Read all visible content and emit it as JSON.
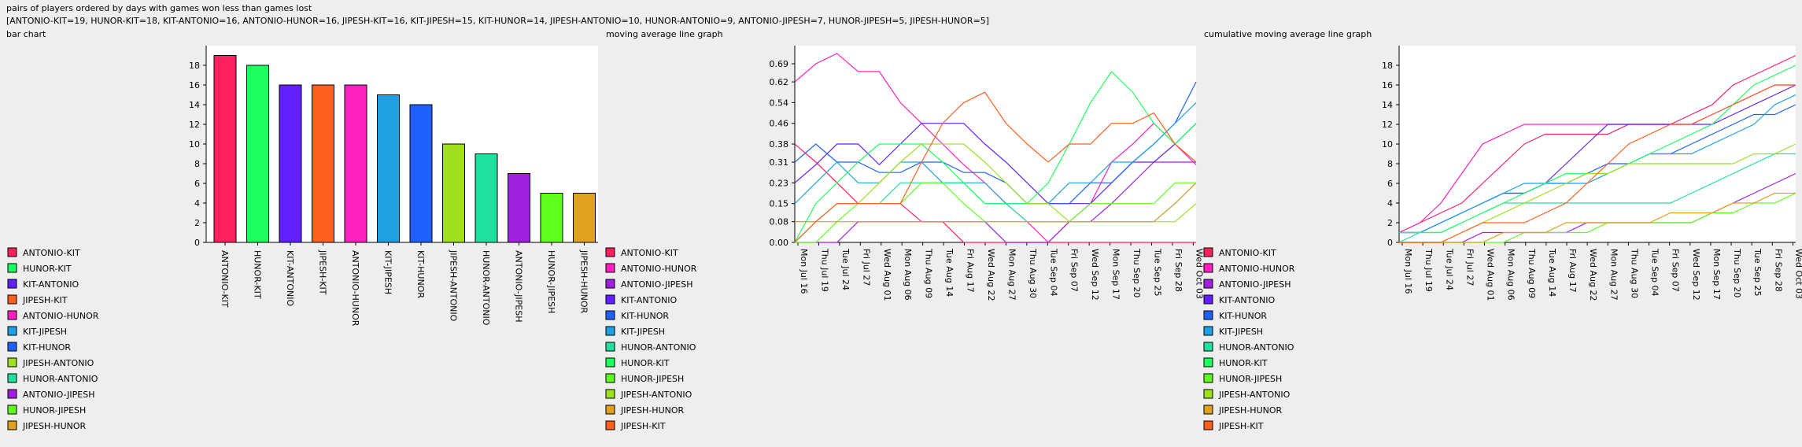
{
  "header": {
    "title": "pairs of players ordered by days with games won less than games lost",
    "summary": "[ANTONIO-KIT=19, HUNOR-KIT=18, KIT-ANTONIO=16, ANTONIO-HUNOR=16, JIPESH-KIT=16, KIT-JIPESH=15, KIT-HUNOR=14, JIPESH-ANTONIO=10, HUNOR-ANTONIO=9, ANTONIO-JIPESH=7, HUNOR-JIPESH=5, JIPESH-HUNOR=5]"
  },
  "colors": {
    "ANTONIO-KIT": "#ff2060",
    "HUNOR-KIT": "#20ff60",
    "KIT-ANTONIO": "#6020ff",
    "JIPESH-KIT": "#ff6020",
    "ANTONIO-HUNOR": "#ff20c0",
    "KIT-JIPESH": "#20a0e0",
    "KIT-HUNOR": "#2060ff",
    "JIPESH-ANTONIO": "#a0e020",
    "HUNOR-ANTONIO": "#20e0a0",
    "ANTONIO-JIPESH": "#a020e0",
    "HUNOR-JIPESH": "#60ff20",
    "JIPESH-HUNOR": "#e0a020"
  },
  "chart_data": [
    {
      "type": "bar",
      "title": "bar chart",
      "categories": [
        "ANTONIO-KIT",
        "HUNOR-KIT",
        "KIT-ANTONIO",
        "JIPESH-KIT",
        "ANTONIO-HUNOR",
        "KIT-JIPESH",
        "KIT-HUNOR",
        "JIPESH-ANTONIO",
        "HUNOR-ANTONIO",
        "ANTONIO-JIPESH",
        "HUNOR-JIPESH",
        "JIPESH-HUNOR"
      ],
      "values": [
        19,
        18,
        16,
        16,
        16,
        15,
        14,
        10,
        9,
        7,
        5,
        5
      ],
      "ylim": [
        0,
        20
      ],
      "yticks": [
        0,
        2,
        4,
        6,
        8,
        10,
        12,
        14,
        16,
        18
      ],
      "legend": [
        "ANTONIO-KIT",
        "HUNOR-KIT",
        "KIT-ANTONIO",
        "JIPESH-KIT",
        "ANTONIO-HUNOR",
        "KIT-JIPESH",
        "KIT-HUNOR",
        "JIPESH-ANTONIO",
        "HUNOR-ANTONIO",
        "ANTONIO-JIPESH",
        "HUNOR-JIPESH",
        "JIPESH-HUNOR"
      ]
    },
    {
      "type": "line",
      "title": "moving average line graph",
      "ylim": [
        0,
        0.76
      ],
      "yticks": [
        "0.00",
        "0.08",
        "0.15",
        "0.23",
        "0.31",
        "0.38",
        "0.46",
        "0.54",
        "0.62",
        "0.69"
      ],
      "x": [
        "Mon Jul 16",
        "Thu Jul 19",
        "Tue Jul 24",
        "Fri Jul 27",
        "Wed Aug 01",
        "Mon Aug 06",
        "Thu Aug 09",
        "Tue Aug 14",
        "Fri Aug 17",
        "Wed Aug 22",
        "Mon Aug 27",
        "Thu Aug 30",
        "Tue Sep 04",
        "Fri Sep 07",
        "Wed Sep 12",
        "Mon Sep 17",
        "Thu Sep 20",
        "Tue Sep 25",
        "Fri Sep 28",
        "Wed Oct 03"
      ],
      "legend": [
        "ANTONIO-KIT",
        "ANTONIO-HUNOR",
        "ANTONIO-JIPESH",
        "KIT-ANTONIO",
        "KIT-HUNOR",
        "KIT-JIPESH",
        "HUNOR-ANTONIO",
        "HUNOR-KIT",
        "HUNOR-JIPESH",
        "JIPESH-ANTONIO",
        "JIPESH-HUNOR",
        "JIPESH-KIT"
      ],
      "series": [
        {
          "name": "ANTONIO-KIT",
          "values": [
            0.38,
            0.31,
            0.23,
            0.15,
            0.15,
            0.15,
            0.08,
            0.08,
            0.0,
            0.0,
            0.0,
            0.0,
            0.0,
            0.0,
            0.0,
            0.0,
            0.0,
            0.0,
            0.0,
            0.0
          ]
        },
        {
          "name": "ANTONIO-HUNOR",
          "values": [
            0.62,
            0.69,
            0.73,
            0.66,
            0.66,
            0.54,
            0.46,
            0.38,
            0.3,
            0.23,
            0.15,
            0.08,
            0.0,
            0.08,
            0.15,
            0.31,
            0.38,
            0.46,
            0.38,
            0.3
          ]
        },
        {
          "name": "ANTONIO-JIPESH",
          "values": [
            0.0,
            0.0,
            0.0,
            0.08,
            0.08,
            0.08,
            0.08,
            0.08,
            0.08,
            0.08,
            0.0,
            0.0,
            0.0,
            0.08,
            0.08,
            0.15,
            0.23,
            0.31,
            0.31,
            0.31
          ]
        },
        {
          "name": "KIT-ANTONIO",
          "values": [
            0.23,
            0.3,
            0.38,
            0.38,
            0.3,
            0.38,
            0.46,
            0.46,
            0.46,
            0.38,
            0.31,
            0.23,
            0.15,
            0.15,
            0.15,
            0.23,
            0.31,
            0.31,
            0.38,
            0.46
          ]
        },
        {
          "name": "KIT-HUNOR",
          "values": [
            0.31,
            0.38,
            0.31,
            0.31,
            0.27,
            0.27,
            0.31,
            0.31,
            0.27,
            0.27,
            0.23,
            0.15,
            0.15,
            0.15,
            0.23,
            0.23,
            0.31,
            0.38,
            0.46,
            0.62
          ]
        },
        {
          "name": "KIT-JIPESH",
          "values": [
            0.15,
            0.23,
            0.31,
            0.23,
            0.23,
            0.31,
            0.31,
            0.23,
            0.23,
            0.23,
            0.15,
            0.15,
            0.15,
            0.23,
            0.23,
            0.31,
            0.31,
            0.38,
            0.46,
            0.54
          ]
        },
        {
          "name": "HUNOR-ANTONIO",
          "values": [
            0.0,
            0.08,
            0.15,
            0.15,
            0.15,
            0.23,
            0.23,
            0.23,
            0.23,
            0.15,
            0.15,
            0.08,
            0.08,
            0.08,
            0.08,
            0.08,
            0.08,
            0.08,
            0.15,
            0.23
          ]
        },
        {
          "name": "HUNOR-KIT",
          "values": [
            0.0,
            0.15,
            0.23,
            0.31,
            0.38,
            0.38,
            0.38,
            0.31,
            0.23,
            0.15,
            0.15,
            0.15,
            0.23,
            0.38,
            0.54,
            0.66,
            0.58,
            0.46,
            0.38,
            0.46
          ]
        },
        {
          "name": "HUNOR-JIPESH",
          "values": [
            0.0,
            0.0,
            0.08,
            0.15,
            0.15,
            0.15,
            0.23,
            0.23,
            0.15,
            0.08,
            0.08,
            0.08,
            0.08,
            0.08,
            0.15,
            0.15,
            0.15,
            0.15,
            0.23,
            0.23
          ]
        },
        {
          "name": "JIPESH-ANTONIO",
          "values": [
            0.08,
            0.08,
            0.15,
            0.15,
            0.23,
            0.31,
            0.38,
            0.38,
            0.38,
            0.31,
            0.23,
            0.15,
            0.15,
            0.08,
            0.08,
            0.08,
            0.08,
            0.08,
            0.08,
            0.15
          ]
        },
        {
          "name": "JIPESH-HUNOR",
          "values": [
            0.08,
            0.08,
            0.08,
            0.08,
            0.08,
            0.08,
            0.08,
            0.08,
            0.08,
            0.08,
            0.08,
            0.08,
            0.08,
            0.08,
            0.08,
            0.08,
            0.08,
            0.08,
            0.15,
            0.23
          ]
        },
        {
          "name": "JIPESH-KIT",
          "values": [
            0.0,
            0.08,
            0.15,
            0.15,
            0.15,
            0.15,
            0.31,
            0.46,
            0.54,
            0.58,
            0.46,
            0.38,
            0.31,
            0.38,
            0.38,
            0.46,
            0.46,
            0.5,
            0.38,
            0.31
          ]
        }
      ]
    },
    {
      "type": "line",
      "title": "cumulative moving average line graph",
      "ylim": [
        0,
        20
      ],
      "yticks": [
        0,
        2,
        4,
        6,
        8,
        10,
        12,
        14,
        16,
        18
      ],
      "x": [
        "Mon Jul 16",
        "Thu Jul 19",
        "Tue Jul 24",
        "Fri Jul 27",
        "Wed Aug 01",
        "Mon Aug 06",
        "Thu Aug 09",
        "Tue Aug 14",
        "Fri Aug 17",
        "Wed Aug 22",
        "Mon Aug 27",
        "Thu Aug 30",
        "Tue Sep 04",
        "Fri Sep 07",
        "Wed Sep 12",
        "Mon Sep 17",
        "Thu Sep 20",
        "Tue Sep 25",
        "Fri Sep 28",
        "Wed Oct 03"
      ],
      "legend": [
        "ANTONIO-KIT",
        "ANTONIO-HUNOR",
        "ANTONIO-JIPESH",
        "KIT-ANTONIO",
        "KIT-HUNOR",
        "KIT-JIPESH",
        "HUNOR-ANTONIO",
        "HUNOR-KIT",
        "HUNOR-JIPESH",
        "JIPESH-ANTONIO",
        "JIPESH-HUNOR",
        "JIPESH-KIT"
      ],
      "series": [
        {
          "name": "ANTONIO-KIT",
          "values": [
            1,
            2,
            3,
            4,
            6,
            8,
            10,
            11,
            11,
            11,
            11,
            12,
            12,
            12,
            13,
            14,
            16,
            17,
            18,
            19
          ]
        },
        {
          "name": "ANTONIO-HUNOR",
          "values": [
            1,
            2,
            4,
            7,
            10,
            11,
            12,
            12,
            12,
            12,
            12,
            12,
            12,
            12,
            12,
            13,
            14,
            15,
            16,
            16
          ]
        },
        {
          "name": "ANTONIO-JIPESH",
          "values": [
            0,
            0,
            0,
            0,
            1,
            1,
            1,
            1,
            1,
            2,
            2,
            2,
            2,
            2,
            2,
            3,
            4,
            5,
            6,
            7
          ]
        },
        {
          "name": "KIT-ANTONIO",
          "values": [
            1,
            1,
            2,
            3,
            4,
            5,
            5,
            6,
            8,
            10,
            12,
            12,
            12,
            12,
            12,
            12,
            13,
            14,
            15,
            16
          ]
        },
        {
          "name": "KIT-HUNOR",
          "values": [
            1,
            1,
            2,
            3,
            4,
            5,
            5,
            6,
            6,
            7,
            8,
            8,
            9,
            9,
            10,
            11,
            12,
            13,
            13,
            14
          ]
        },
        {
          "name": "KIT-JIPESH",
          "values": [
            1,
            1,
            2,
            3,
            4,
            5,
            6,
            6,
            6,
            6,
            7,
            8,
            9,
            9,
            9,
            10,
            11,
            12,
            14,
            15
          ]
        },
        {
          "name": "HUNOR-ANTONIO",
          "values": [
            0,
            1,
            1,
            2,
            3,
            4,
            4,
            4,
            4,
            4,
            4,
            4,
            4,
            4,
            5,
            6,
            7,
            8,
            9,
            9
          ]
        },
        {
          "name": "HUNOR-KIT",
          "values": [
            1,
            1,
            1,
            2,
            3,
            4,
            5,
            6,
            7,
            7,
            7,
            8,
            9,
            10,
            11,
            12,
            14,
            16,
            17,
            18
          ]
        },
        {
          "name": "HUNOR-JIPESH",
          "values": [
            0,
            0,
            0,
            0,
            0,
            0,
            1,
            1,
            1,
            1,
            2,
            2,
            2,
            2,
            2,
            3,
            3,
            4,
            4,
            5
          ]
        },
        {
          "name": "JIPESH-ANTONIO",
          "values": [
            0,
            0,
            0,
            1,
            2,
            3,
            4,
            5,
            6,
            7,
            7,
            8,
            8,
            8,
            8,
            8,
            8,
            9,
            9,
            10
          ]
        },
        {
          "name": "JIPESH-HUNOR",
          "values": [
            0,
            0,
            0,
            0,
            0,
            1,
            1,
            1,
            2,
            2,
            2,
            2,
            2,
            3,
            3,
            3,
            4,
            4,
            5,
            5
          ]
        },
        {
          "name": "JIPESH-KIT",
          "values": [
            0,
            0,
            0,
            1,
            2,
            2,
            2,
            3,
            4,
            6,
            8,
            10,
            11,
            12,
            12,
            13,
            14,
            15,
            16,
            16
          ]
        }
      ]
    }
  ]
}
